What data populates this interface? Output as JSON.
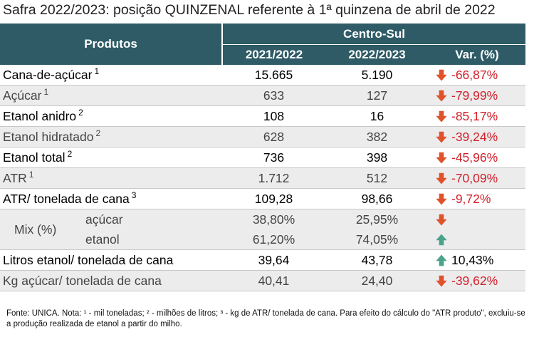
{
  "title": "Safra 2022/2023: posição QUINZENAL referente à 1ª quinzena de abril de 2022",
  "header": {
    "produtos": "Produtos",
    "region": "Centro-Sul",
    "col1": "2021/2022",
    "col2": "2022/2023",
    "col3": "Var. (%)"
  },
  "rows": [
    {
      "name": "Cana-de-açúcar",
      "sup": "1",
      "v1": "15.665",
      "v2": "5.190",
      "var": "-66,87%",
      "dir": "down"
    },
    {
      "name": "Açúcar",
      "sup": "1",
      "v1": "633",
      "v2": "127",
      "var": "-79,99%",
      "dir": "down"
    },
    {
      "name": "Etanol anidro",
      "sup": "2",
      "v1": "108",
      "v2": "16",
      "var": "-85,17%",
      "dir": "down"
    },
    {
      "name": "Etanol hidratado",
      "sup": "2",
      "v1": "628",
      "v2": "382",
      "var": "-39,24%",
      "dir": "down"
    },
    {
      "name": "Etanol total",
      "sup": "2",
      "v1": "736",
      "v2": "398",
      "var": "-45,96%",
      "dir": "down"
    },
    {
      "name": "ATR",
      "sup": "1",
      "v1": "1.712",
      "v2": "512",
      "var": "-70,09%",
      "dir": "down"
    },
    {
      "name": "ATR/ tonelada de cana",
      "sup": "3",
      "v1": "109,28",
      "v2": "98,66",
      "var": "-9,72%",
      "dir": "down"
    }
  ],
  "mix": {
    "label": "Mix (%)",
    "acucar": {
      "label": "açúcar",
      "v1": "38,80%",
      "v2": "25,95%",
      "dir": "down"
    },
    "etanol": {
      "label": "etanol",
      "v1": "61,20%",
      "v2": "74,05%",
      "dir": "up"
    }
  },
  "rows2": [
    {
      "name": "Litros etanol/ tonelada de cana",
      "v1": "39,64",
      "v2": "43,78",
      "var": "10,43%",
      "dir": "up"
    },
    {
      "name": "Kg açúcar/ tonelada de cana",
      "v1": "40,41",
      "v2": "24,40",
      "var": "-39,62%",
      "dir": "down"
    }
  ],
  "footnote": "Fonte: UNICA. Nota: ¹ - mil toneladas; ² - milhões de litros; ³ - kg de ATR/ tonelada de cana. Para efeito do cálculo do \"ATR produto\", excluiu-se a produção realizada de etanol a partir do milho.",
  "colors": {
    "header_bg": "#2e5b66",
    "down_arrow": "#e0532a",
    "up_arrow": "#4aa38a",
    "negative_text": "#d2202a"
  }
}
